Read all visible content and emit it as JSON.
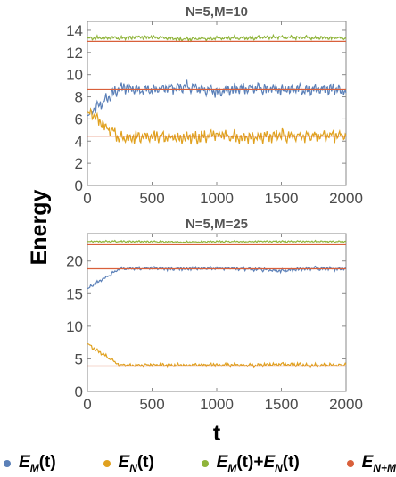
{
  "chart_data": [
    {
      "type": "line",
      "title": "N=5,M=10",
      "xlim": [
        0,
        2000
      ],
      "ylim": [
        0,
        14.8
      ],
      "xticks": [
        0,
        500,
        1000,
        1500,
        2000
      ],
      "yticks": [
        0,
        2,
        4,
        6,
        8,
        10,
        12,
        14
      ],
      "series": [
        {
          "key": "EM",
          "color": "#5b80b8",
          "start": 6.3,
          "mean": 8.7,
          "amp": 0.55,
          "x": [
            0,
            250,
            500,
            750,
            1000,
            1250,
            1500,
            1750,
            2000
          ],
          "values": [
            6.3,
            8.8,
            8.6,
            8.9,
            8.5,
            8.8,
            8.6,
            8.7,
            8.6
          ]
        },
        {
          "key": "EN",
          "color": "#e0a11f",
          "start": 6.6,
          "mean": 4.4,
          "amp": 0.6,
          "x": [
            0,
            250,
            500,
            750,
            1000,
            1250,
            1500,
            1750,
            2000
          ],
          "values": [
            6.6,
            4.3,
            4.5,
            4.2,
            4.6,
            4.3,
            4.5,
            4.4,
            4.5
          ]
        },
        {
          "key": "EMN",
          "color": "#8fb43a",
          "start": 13.3,
          "mean": 13.3,
          "amp": 0.18,
          "x": [
            0,
            250,
            500,
            750,
            1000,
            1250,
            1500,
            1750,
            2000
          ],
          "values": [
            13.3,
            13.3,
            13.4,
            13.2,
            13.3,
            13.3,
            13.4,
            13.3,
            13.3
          ]
        }
      ],
      "reference_lines": [
        {
          "key": "ENM",
          "color": "#d9603b",
          "value": 8.65
        },
        {
          "key": "ENM",
          "color": "#d9603b",
          "value": 4.45
        },
        {
          "key": "ENM",
          "color": "#d9603b",
          "value": 13.0
        }
      ]
    },
    {
      "type": "line",
      "title": "N=5,M=25",
      "xlim": [
        0,
        2000
      ],
      "ylim": [
        0,
        24.2
      ],
      "xticks": [
        0,
        500,
        1000,
        1500,
        2000
      ],
      "yticks": [
        0,
        5,
        10,
        15,
        20
      ],
      "series": [
        {
          "key": "EM",
          "color": "#5b80b8",
          "start": 15.8,
          "mean": 18.8,
          "amp": 0.3,
          "x": [
            0,
            250,
            500,
            750,
            1000,
            1250,
            1500,
            1750,
            2000
          ],
          "values": [
            15.8,
            18.8,
            18.9,
            18.8,
            18.9,
            18.8,
            18.5,
            18.9,
            18.8
          ]
        },
        {
          "key": "EN",
          "color": "#e0a11f",
          "start": 7.3,
          "mean": 4.1,
          "amp": 0.3,
          "x": [
            0,
            250,
            500,
            750,
            1000,
            1250,
            1500,
            1750,
            2000
          ],
          "values": [
            7.3,
            4.0,
            4.1,
            4.0,
            4.1,
            4.0,
            4.2,
            4.0,
            4.1
          ]
        },
        {
          "key": "EMN",
          "color": "#8fb43a",
          "start": 23.0,
          "mean": 23.0,
          "amp": 0.15,
          "x": [
            0,
            250,
            500,
            750,
            1000,
            1250,
            1500,
            1750,
            2000
          ],
          "values": [
            23.0,
            23.0,
            23.0,
            22.9,
            23.0,
            23.0,
            23.0,
            23.0,
            23.0
          ]
        }
      ],
      "reference_lines": [
        {
          "key": "ENM",
          "color": "#d9603b",
          "value": 18.8
        },
        {
          "key": "ENM",
          "color": "#d9603b",
          "value": 3.9
        },
        {
          "key": "ENM",
          "color": "#d9603b",
          "value": 22.5
        }
      ]
    }
  ],
  "axes": {
    "ylabel": "Energy",
    "xlabel": "t"
  },
  "legend": [
    {
      "key": "EM",
      "color": "#5b80b8"
    },
    {
      "key": "EN",
      "color": "#e0a11f"
    },
    {
      "key": "EMN",
      "color": "#8fb43a"
    },
    {
      "key": "ENM",
      "color": "#d9603b"
    }
  ]
}
